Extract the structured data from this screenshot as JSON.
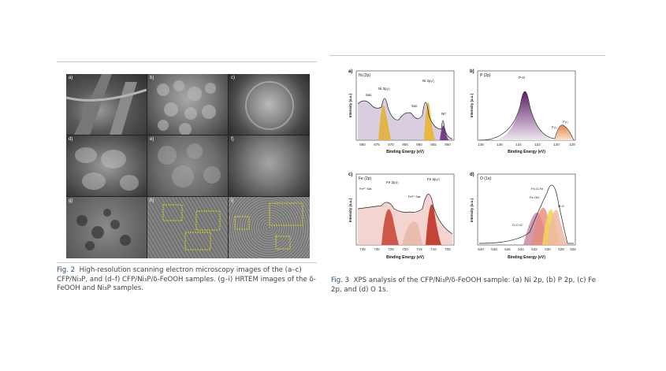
{
  "figure2": {
    "panel_labels": [
      "a)",
      "b)",
      "c)",
      "d)",
      "e)",
      "f)",
      "g)",
      "h)",
      "i)"
    ],
    "caption_label": "Fig. 2",
    "caption_text": "High-resolution scanning electron microscopy images of the (a–c) CFP/Ni₃P, and (d–f) CFP/Ni₃P/δ-FeOOH samples. (g–i) HRTEM images of the δ-FeOOH and Ni₃P samples."
  },
  "figure3": {
    "caption_label": "Fig. 3",
    "caption_text": "XPS analysis of the CFP/Ni₃P/δ-FeOOH sample: (a) Ni 2p, (b) P 2p, (c) Fe 2p, and (d) O 1s.",
    "panels": [
      {
        "label": "a)",
        "title": "Ni (2p)",
        "xlabel": "Binding Energy (eV)",
        "ylabel": "Intensity (a.u.)",
        "ticks": [
          "880",
          "875",
          "870",
          "865",
          "860",
          "855",
          "850"
        ],
        "annotations": [
          "Sat.",
          "Ni 2p₁/₂",
          "Sat.",
          "Ni 2p₃/₂",
          "Ni⁰"
        ]
      },
      {
        "label": "b)",
        "title": "P (2p)",
        "xlabel": "Binding Energy (eV)",
        "ylabel": "Intensity (a.u.)",
        "ticks": [
          "138",
          "136",
          "134",
          "132",
          "130",
          "128"
        ],
        "annotations": [
          "P-O",
          "P₁/₂",
          "P₃/₂"
        ]
      },
      {
        "label": "c)",
        "title": "Fe (2p)",
        "xlabel": "Binding Energy (eV)",
        "ylabel": "Intensity (a.u.)",
        "ticks": [
          "735",
          "730",
          "725",
          "720",
          "715",
          "710",
          "705"
        ],
        "annotations": [
          "Fe³⁺ Sat.",
          "Fe 2p₁/₂",
          "Fe³⁺ Sat.",
          "Fe 2p₃/₂"
        ]
      },
      {
        "label": "d)",
        "title": "O (1s)",
        "xlabel": "Binding Energy (eV)",
        "ylabel": "Intensity (a.u.)",
        "ticks": [
          "540",
          "538",
          "536",
          "534",
          "532",
          "530",
          "528",
          "526"
        ],
        "annotations": [
          "Fe-O-Fe",
          "Fe-OH",
          "M-O",
          "O-C=O"
        ]
      }
    ]
  }
}
